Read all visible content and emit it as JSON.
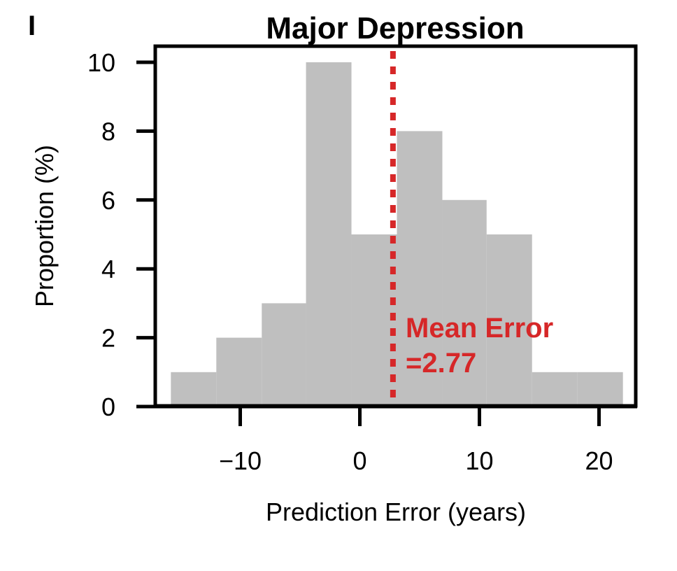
{
  "panel_label": "I",
  "chart_data": {
    "type": "bar",
    "title": "Major Depression",
    "xlabel": "Prediction Error (years)",
    "ylabel": "Proportion (%)",
    "bins": [
      {
        "x0": -15.8,
        "x1": -12.0,
        "value": 1
      },
      {
        "x0": -12.0,
        "x1": -8.2,
        "value": 2
      },
      {
        "x0": -8.2,
        "x1": -4.5,
        "value": 3
      },
      {
        "x0": -4.5,
        "x1": -0.7,
        "value": 10
      },
      {
        "x0": -0.7,
        "x1": 3.1,
        "value": 5
      },
      {
        "x0": 3.1,
        "x1": 6.9,
        "value": 8
      },
      {
        "x0": 6.9,
        "x1": 10.6,
        "value": 6
      },
      {
        "x0": 10.6,
        "x1": 14.4,
        "value": 5
      },
      {
        "x0": 14.4,
        "x1": 18.2,
        "value": 1
      },
      {
        "x0": 18.2,
        "x1": 22.0,
        "value": 1
      }
    ],
    "xlim": [
      -17.3,
      23.2
    ],
    "ylim": [
      0,
      10.5
    ],
    "xticks": [
      {
        "value": -10,
        "label": "−10"
      },
      {
        "value": 0,
        "label": "0"
      },
      {
        "value": 10,
        "label": "10"
      },
      {
        "value": 20,
        "label": "20"
      }
    ],
    "yticks": [
      {
        "value": 0,
        "label": "0"
      },
      {
        "value": 2,
        "label": "2"
      },
      {
        "value": 4,
        "label": "4"
      },
      {
        "value": 6,
        "label": "6"
      },
      {
        "value": 8,
        "label": "8"
      },
      {
        "value": 10,
        "label": "10"
      }
    ],
    "mean_error": {
      "value": 2.77,
      "label_line1": "Mean Error",
      "label_line2": "=2.77",
      "color": "#d62728"
    },
    "bar_color": "#bfbfbf",
    "grid": false
  }
}
